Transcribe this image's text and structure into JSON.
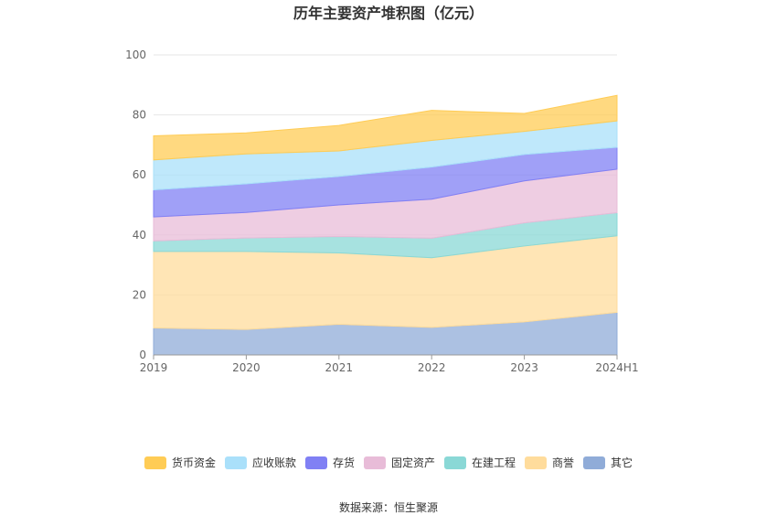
{
  "chart_data": {
    "type": "area",
    "stacked": true,
    "title": "历年主要资产堆积图（亿元）",
    "x": [
      "2019",
      "2020",
      "2021",
      "2022",
      "2023",
      "2024H1"
    ],
    "ylim": [
      0,
      100
    ],
    "yticks": [
      "0",
      "20",
      "40",
      "60",
      "80",
      "100"
    ],
    "grid": true,
    "legend_position": "bottom",
    "series": [
      {
        "name": "其它",
        "color": "#90acd8",
        "values": [
          9,
          8.5,
          10.2,
          9.2,
          11,
          14.2
        ]
      },
      {
        "name": "商誉",
        "color": "#ffdc9c",
        "values": [
          25.5,
          26,
          23.8,
          23.2,
          25.3,
          25.5
        ]
      },
      {
        "name": "在建工程",
        "color": "#8ad8d6",
        "values": [
          3.5,
          4.5,
          5.5,
          6.5,
          7.7,
          7.7
        ]
      },
      {
        "name": "固定资产",
        "color": "#e8bcd8",
        "values": [
          8,
          8.5,
          10.5,
          13,
          14,
          14.5
        ]
      },
      {
        "name": "存货",
        "color": "#8080f4",
        "values": [
          9,
          9.5,
          9.5,
          10.7,
          8.8,
          7.3
        ]
      },
      {
        "name": "应收账款",
        "color": "#aae0fa",
        "values": [
          10,
          10,
          8.5,
          8.9,
          7.7,
          8.8
        ]
      },
      {
        "name": "货币资金",
        "color": "#ffcc55",
        "values": [
          8,
          7,
          8.5,
          10,
          6,
          8.5
        ]
      }
    ],
    "legend_order": [
      "货币资金",
      "应收账款",
      "存货",
      "固定资产",
      "在建工程",
      "商誉",
      "其它"
    ]
  },
  "source": "数据来源：恒生聚源"
}
